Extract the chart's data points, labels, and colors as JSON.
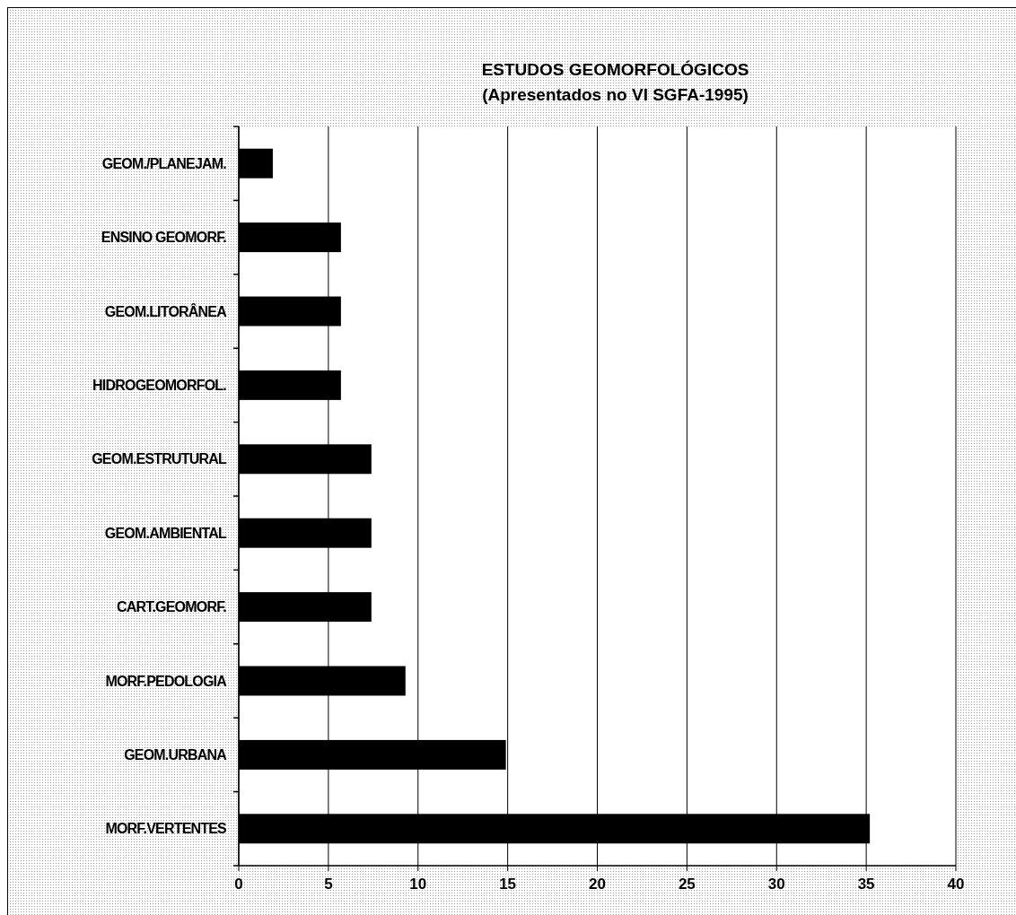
{
  "chart_data": {
    "type": "bar",
    "orientation": "horizontal",
    "title": "ESTUDOS GEOMORFOLÓGICOS",
    "subtitle": "(Apresentados no VI SGFA-1995)",
    "categories": [
      "GEOM./PLANEJAM.",
      "ENSINO GEOMORF.",
      "GEOM.LITORÂNEA",
      "HIDROGEOMORFOL.",
      "GEOM.ESTRUTURAL",
      "GEOM.AMBIENTAL",
      "CART.GEOMORF.",
      "MORF.PEDOLOGIA",
      "GEOM.URBANA",
      "MORF.VERTENTES"
    ],
    "values": [
      1.9,
      5.7,
      5.7,
      5.7,
      7.4,
      7.4,
      7.4,
      9.3,
      14.9,
      35.2
    ],
    "color": "#000000",
    "xlim": [
      0,
      40
    ],
    "xticks": [
      0,
      5,
      10,
      15,
      20,
      25,
      30,
      35,
      40
    ],
    "grid": "x"
  }
}
